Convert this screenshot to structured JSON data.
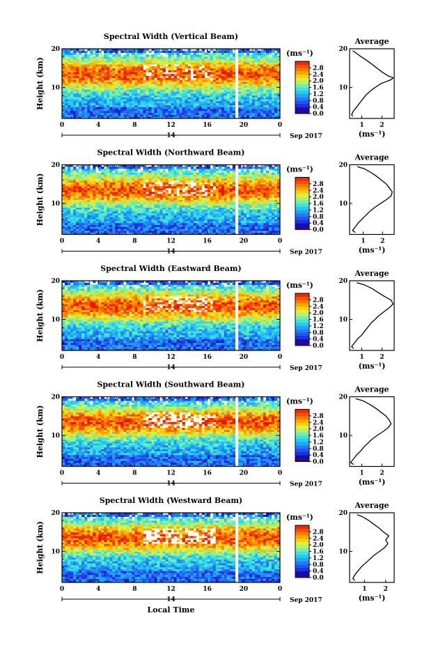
{
  "figure": {
    "xlabel": "Local Time",
    "date_day": "14",
    "date_suffix": "Sep 2017",
    "ylabel": "Height (km)",
    "avg_title": "Average",
    "cb_unit": "(ms⁻¹)",
    "avg_unit": "(ms⁻¹)"
  },
  "chart_data": [
    {
      "type": "heatmap",
      "title": "Spectral Width (Vertical Beam)",
      "xlabel": "Local Time",
      "ylabel": "Height (km)",
      "xlim": [
        0,
        24
      ],
      "ylim": [
        2,
        20
      ],
      "x_ticks": [
        "0",
        "4",
        "8",
        "12",
        "16",
        "20",
        "0"
      ],
      "y_ticks": [
        "10",
        "20"
      ],
      "colorbar": {
        "unit": "(ms⁻¹)",
        "range": [
          0,
          3.2
        ],
        "ticks": [
          "0.0",
          "0.4",
          "0.8",
          "1.2",
          "1.6",
          "2.0",
          "2.4",
          "2.8"
        ]
      },
      "profile": {
        "title": "Average",
        "xlabel": "(ms⁻¹)",
        "xlim": [
          0.4,
          2.6
        ],
        "x_ticks": [
          "1",
          "2"
        ],
        "y_ticks": [
          "10",
          "20"
        ],
        "heights": [
          2.5,
          3,
          4,
          5,
          6,
          7,
          8,
          9,
          10,
          11,
          11.5,
          12,
          12.5,
          13,
          14,
          15,
          16,
          17,
          18,
          19,
          19.5
        ],
        "values": [
          0.55,
          0.5,
          0.6,
          0.75,
          0.9,
          1.05,
          1.2,
          1.4,
          1.65,
          1.95,
          2.2,
          2.45,
          2.55,
          2.3,
          2.0,
          1.75,
          1.5,
          1.25,
          0.95,
          0.7,
          0.55
        ]
      }
    },
    {
      "type": "heatmap",
      "title": "Spectral Width (Northward Beam)",
      "xlabel": "Local Time",
      "ylabel": "Height (km)",
      "xlim": [
        0,
        24
      ],
      "ylim": [
        2,
        20
      ],
      "x_ticks": [
        "0",
        "4",
        "8",
        "12",
        "16",
        "20",
        "0"
      ],
      "y_ticks": [
        "10",
        "20"
      ],
      "colorbar": {
        "unit": "(ms⁻¹)",
        "range": [
          0,
          3.2
        ],
        "ticks": [
          "0.0",
          "0.4",
          "0.8",
          "1.2",
          "1.6",
          "2.0",
          "2.4",
          "2.8"
        ]
      },
      "profile": {
        "title": "Average",
        "xlabel": "(ms⁻¹)",
        "xlim": [
          0.3,
          2.6
        ],
        "x_ticks": [
          "1",
          "2"
        ],
        "y_ticks": [
          "10",
          "20"
        ],
        "heights": [
          2.5,
          3,
          4,
          5,
          6,
          7,
          8,
          9,
          10,
          11,
          12,
          13,
          14,
          15,
          16,
          17,
          18,
          19,
          19.5
        ],
        "values": [
          0.6,
          0.45,
          0.6,
          0.75,
          0.95,
          1.15,
          1.35,
          1.6,
          1.9,
          2.2,
          2.45,
          2.5,
          2.35,
          2.2,
          1.95,
          1.7,
          1.4,
          1.05,
          0.7
        ]
      }
    },
    {
      "type": "heatmap",
      "title": "Spectral Width (Eastward Beam)",
      "xlabel": "Local Time",
      "ylabel": "Height (km)",
      "xlim": [
        0,
        24
      ],
      "ylim": [
        2,
        20
      ],
      "x_ticks": [
        "0",
        "4",
        "8",
        "12",
        "16",
        "20",
        "0"
      ],
      "y_ticks": [
        "10",
        "20"
      ],
      "colorbar": {
        "unit": "(ms⁻¹)",
        "range": [
          0,
          3.2
        ],
        "ticks": [
          "0.0",
          "0.4",
          "0.8",
          "1.2",
          "1.6",
          "2.0",
          "2.4",
          "2.8"
        ]
      },
      "profile": {
        "title": "Average",
        "xlabel": "(ms⁻¹)",
        "xlim": [
          0.4,
          2.6
        ],
        "x_ticks": [
          "1",
          "2"
        ],
        "y_ticks": [
          "10",
          "20"
        ],
        "heights": [
          2.5,
          3,
          4,
          5,
          6,
          7,
          8,
          9,
          10,
          11,
          12,
          13,
          14,
          15,
          16,
          17,
          18,
          19,
          19.5
        ],
        "values": [
          0.6,
          0.5,
          0.65,
          0.8,
          1.0,
          1.15,
          1.3,
          1.45,
          1.65,
          1.85,
          2.1,
          2.35,
          2.55,
          2.45,
          2.1,
          1.8,
          1.5,
          1.1,
          0.75
        ]
      }
    },
    {
      "type": "heatmap",
      "title": "Spectral Width (Southward Beam)",
      "xlabel": "Local Time",
      "ylabel": "Height (km)",
      "xlim": [
        0,
        24
      ],
      "ylim": [
        2,
        20
      ],
      "x_ticks": [
        "0",
        "4",
        "8",
        "12",
        "16",
        "20",
        "0"
      ],
      "y_ticks": [
        "10",
        "20"
      ],
      "colorbar": {
        "unit": "(ms⁻¹)",
        "range": [
          0,
          3.2
        ],
        "ticks": [
          "0.0",
          "0.4",
          "0.8",
          "1.2",
          "1.6",
          "2.0",
          "2.4",
          "2.8"
        ]
      },
      "profile": {
        "title": "Average",
        "xlabel": "(ms⁻¹)",
        "xlim": [
          0.4,
          2.6
        ],
        "x_ticks": [
          "1",
          "2"
        ],
        "y_ticks": [
          "10",
          "20"
        ],
        "heights": [
          2.5,
          3,
          4,
          5,
          6,
          7,
          8,
          9,
          10,
          11,
          12,
          13,
          14,
          15,
          16,
          17,
          18,
          19,
          19.5
        ],
        "values": [
          0.6,
          0.45,
          0.6,
          0.75,
          0.95,
          1.1,
          1.3,
          1.5,
          1.75,
          2.05,
          2.3,
          2.45,
          2.35,
          2.2,
          1.95,
          1.7,
          1.4,
          1.05,
          0.7
        ]
      }
    },
    {
      "type": "heatmap",
      "title": "Spectral Width (Westward Beam)",
      "xlabel": "Local Time",
      "ylabel": "Height (km)",
      "xlim": [
        0,
        24
      ],
      "ylim": [
        2,
        20
      ],
      "x_ticks": [
        "0",
        "4",
        "8",
        "12",
        "16",
        "20",
        "0"
      ],
      "y_ticks": [
        "10",
        "20"
      ],
      "colorbar": {
        "unit": "(ms⁻¹)",
        "range": [
          0,
          3.2
        ],
        "ticks": [
          "0.0",
          "0.4",
          "0.8",
          "1.2",
          "1.6",
          "2.0",
          "2.4",
          "2.8"
        ]
      },
      "profile": {
        "title": "Average",
        "xlabel": "(ms⁻¹)",
        "xlim": [
          0.3,
          2.4
        ],
        "x_ticks": [
          "1",
          "2"
        ],
        "y_ticks": [
          "10",
          "20"
        ],
        "heights": [
          2.5,
          3,
          4,
          5,
          6,
          7,
          8,
          9,
          10,
          11,
          12,
          13,
          14,
          15,
          16,
          17,
          18,
          19,
          19.5
        ],
        "values": [
          0.55,
          0.45,
          0.55,
          0.7,
          0.85,
          1.05,
          1.25,
          1.45,
          1.7,
          1.95,
          2.1,
          2.0,
          2.15,
          1.9,
          1.7,
          1.45,
          1.2,
          0.9,
          0.65
        ]
      }
    }
  ]
}
